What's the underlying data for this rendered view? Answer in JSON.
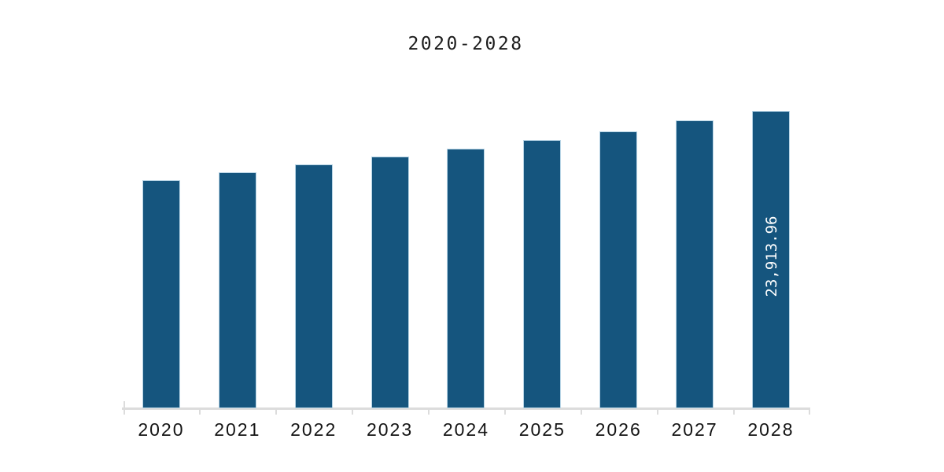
{
  "chart_data": {
    "type": "bar",
    "title": "2020-2028",
    "categories": [
      "2020",
      "2021",
      "2022",
      "2023",
      "2024",
      "2025",
      "2026",
      "2027",
      "2028"
    ],
    "values": [
      18350,
      18980,
      19610,
      20240,
      20880,
      21570,
      22270,
      23150,
      23913.96
    ],
    "data_labels": [
      "",
      "",
      "",
      "",
      "",
      "",
      "",
      "",
      "23,913.96"
    ],
    "xlabel": "",
    "ylabel": "",
    "ylim": [
      0,
      23913.96
    ],
    "grid": false,
    "legend": "none",
    "colors": {
      "background": "#FFFFFF",
      "bar_fill": "#15557E",
      "bar_border": "#B7D4E5",
      "axis_line": "#DCDCDC",
      "title_text": "#1C1C1C",
      "tick_label": "#141414",
      "value_label": "#FFFFFF"
    }
  }
}
